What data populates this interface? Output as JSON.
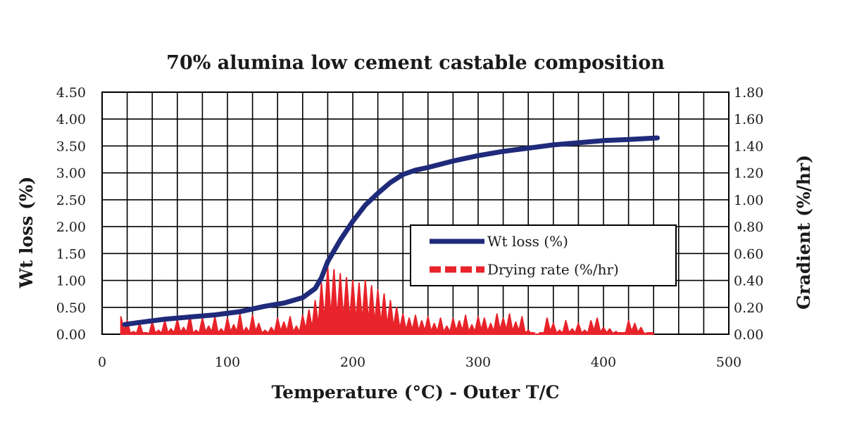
{
  "chart_data": {
    "type": "line",
    "title": "70% alumina low cement castable composition",
    "xlabel": "Temperature (°C) - Outer T/C",
    "ylabel": "Wt loss (%)",
    "y2label": "Gradient (%/hr)",
    "xlim": [
      0,
      500
    ],
    "ylim": [
      0,
      4.5
    ],
    "y2lim": [
      0,
      1.8
    ],
    "x_ticks": [
      "0",
      "100",
      "200",
      "300",
      "400",
      "500"
    ],
    "y_ticks": [
      "0.00",
      "0.50",
      "1.00",
      "1.50",
      "2.00",
      "2.50",
      "3.00",
      "3.50",
      "4.00",
      "4.50"
    ],
    "y2_ticks": [
      "0.00",
      "0.20",
      "0.40",
      "0.60",
      "0.80",
      "1.00",
      "1.20",
      "1.40",
      "1.60",
      "1.80"
    ],
    "grid": true,
    "legend_position": "center-right",
    "series": [
      {
        "name": "Wt loss (%)",
        "axis": "left",
        "color": "#1f2a7a",
        "style": "solid",
        "x": [
          18,
          30,
          50,
          70,
          90,
          110,
          130,
          145,
          160,
          170,
          175,
          180,
          185,
          190,
          200,
          210,
          220,
          230,
          240,
          250,
          260,
          280,
          300,
          320,
          340,
          360,
          380,
          400,
          420,
          443
        ],
        "y": [
          0.18,
          0.22,
          0.28,
          0.32,
          0.36,
          0.42,
          0.52,
          0.58,
          0.68,
          0.85,
          1.05,
          1.35,
          1.55,
          1.75,
          2.1,
          2.4,
          2.62,
          2.82,
          2.97,
          3.05,
          3.1,
          3.22,
          3.32,
          3.4,
          3.46,
          3.52,
          3.56,
          3.6,
          3.62,
          3.65
        ]
      },
      {
        "name": "Drying rate (%/hr)",
        "axis": "right",
        "color": "#e8232a",
        "style": "dashed",
        "x": [
          15,
          20,
          25,
          30,
          35,
          40,
          45,
          50,
          55,
          60,
          65,
          70,
          75,
          80,
          85,
          90,
          95,
          100,
          105,
          110,
          115,
          120,
          125,
          130,
          135,
          140,
          145,
          150,
          155,
          160,
          165,
          170,
          175,
          180,
          185,
          190,
          195,
          200,
          205,
          210,
          215,
          220,
          225,
          230,
          235,
          240,
          245,
          250,
          255,
          260,
          265,
          270,
          275,
          280,
          285,
          290,
          295,
          300,
          305,
          310,
          315,
          320,
          325,
          330,
          335,
          340,
          345,
          350,
          355,
          360,
          365,
          370,
          375,
          380,
          385,
          390,
          395,
          400,
          405,
          410,
          415,
          420,
          425,
          430,
          435,
          440
        ],
        "y": [
          0.13,
          0.1,
          0.02,
          0.08,
          0.01,
          0.09,
          0.03,
          0.1,
          0.04,
          0.11,
          0.05,
          0.14,
          0.03,
          0.12,
          0.06,
          0.13,
          0.04,
          0.12,
          0.07,
          0.15,
          0.05,
          0.14,
          0.08,
          0.03,
          0.05,
          0.12,
          0.09,
          0.13,
          0.06,
          0.14,
          0.18,
          0.25,
          0.38,
          0.5,
          0.48,
          0.45,
          0.42,
          0.4,
          0.38,
          0.4,
          0.36,
          0.33,
          0.3,
          0.25,
          0.2,
          0.15,
          0.12,
          0.14,
          0.1,
          0.13,
          0.08,
          0.12,
          0.06,
          0.12,
          0.1,
          0.14,
          0.07,
          0.13,
          0.12,
          0.08,
          0.15,
          0.12,
          0.15,
          0.09,
          0.13,
          0.03,
          0.0,
          0.01,
          0.12,
          0.08,
          0.03,
          0.1,
          0.04,
          0.08,
          0.03,
          0.1,
          0.12,
          0.05,
          0.04,
          0.02,
          0.0,
          0.1,
          0.08,
          0.05,
          0.01,
          0.0
        ]
      }
    ]
  }
}
